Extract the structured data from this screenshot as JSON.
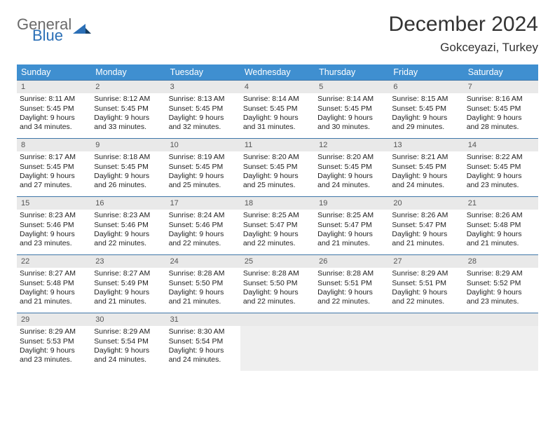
{
  "brand": {
    "general": "General",
    "blue": "Blue"
  },
  "colors": {
    "header_bg": "#3f8fd0",
    "week_border": "#3f76a8",
    "daynum_bg": "#e9e9e9",
    "logo_blue": "#2b6fb6",
    "logo_gray": "#6a6a6a",
    "text": "#222222"
  },
  "title": "December 2024",
  "location": "Gokceyazi, Turkey",
  "weekdays": [
    "Sunday",
    "Monday",
    "Tuesday",
    "Wednesday",
    "Thursday",
    "Friday",
    "Saturday"
  ],
  "days": [
    {
      "n": "1",
      "sr": "8:11 AM",
      "ss": "5:45 PM",
      "dl": "9 hours and 34 minutes."
    },
    {
      "n": "2",
      "sr": "8:12 AM",
      "ss": "5:45 PM",
      "dl": "9 hours and 33 minutes."
    },
    {
      "n": "3",
      "sr": "8:13 AM",
      "ss": "5:45 PM",
      "dl": "9 hours and 32 minutes."
    },
    {
      "n": "4",
      "sr": "8:14 AM",
      "ss": "5:45 PM",
      "dl": "9 hours and 31 minutes."
    },
    {
      "n": "5",
      "sr": "8:14 AM",
      "ss": "5:45 PM",
      "dl": "9 hours and 30 minutes."
    },
    {
      "n": "6",
      "sr": "8:15 AM",
      "ss": "5:45 PM",
      "dl": "9 hours and 29 minutes."
    },
    {
      "n": "7",
      "sr": "8:16 AM",
      "ss": "5:45 PM",
      "dl": "9 hours and 28 minutes."
    },
    {
      "n": "8",
      "sr": "8:17 AM",
      "ss": "5:45 PM",
      "dl": "9 hours and 27 minutes."
    },
    {
      "n": "9",
      "sr": "8:18 AM",
      "ss": "5:45 PM",
      "dl": "9 hours and 26 minutes."
    },
    {
      "n": "10",
      "sr": "8:19 AM",
      "ss": "5:45 PM",
      "dl": "9 hours and 25 minutes."
    },
    {
      "n": "11",
      "sr": "8:20 AM",
      "ss": "5:45 PM",
      "dl": "9 hours and 25 minutes."
    },
    {
      "n": "12",
      "sr": "8:20 AM",
      "ss": "5:45 PM",
      "dl": "9 hours and 24 minutes."
    },
    {
      "n": "13",
      "sr": "8:21 AM",
      "ss": "5:45 PM",
      "dl": "9 hours and 24 minutes."
    },
    {
      "n": "14",
      "sr": "8:22 AM",
      "ss": "5:45 PM",
      "dl": "9 hours and 23 minutes."
    },
    {
      "n": "15",
      "sr": "8:23 AM",
      "ss": "5:46 PM",
      "dl": "9 hours and 23 minutes."
    },
    {
      "n": "16",
      "sr": "8:23 AM",
      "ss": "5:46 PM",
      "dl": "9 hours and 22 minutes."
    },
    {
      "n": "17",
      "sr": "8:24 AM",
      "ss": "5:46 PM",
      "dl": "9 hours and 22 minutes."
    },
    {
      "n": "18",
      "sr": "8:25 AM",
      "ss": "5:47 PM",
      "dl": "9 hours and 22 minutes."
    },
    {
      "n": "19",
      "sr": "8:25 AM",
      "ss": "5:47 PM",
      "dl": "9 hours and 21 minutes."
    },
    {
      "n": "20",
      "sr": "8:26 AM",
      "ss": "5:47 PM",
      "dl": "9 hours and 21 minutes."
    },
    {
      "n": "21",
      "sr": "8:26 AM",
      "ss": "5:48 PM",
      "dl": "9 hours and 21 minutes."
    },
    {
      "n": "22",
      "sr": "8:27 AM",
      "ss": "5:48 PM",
      "dl": "9 hours and 21 minutes."
    },
    {
      "n": "23",
      "sr": "8:27 AM",
      "ss": "5:49 PM",
      "dl": "9 hours and 21 minutes."
    },
    {
      "n": "24",
      "sr": "8:28 AM",
      "ss": "5:50 PM",
      "dl": "9 hours and 21 minutes."
    },
    {
      "n": "25",
      "sr": "8:28 AM",
      "ss": "5:50 PM",
      "dl": "9 hours and 22 minutes."
    },
    {
      "n": "26",
      "sr": "8:28 AM",
      "ss": "5:51 PM",
      "dl": "9 hours and 22 minutes."
    },
    {
      "n": "27",
      "sr": "8:29 AM",
      "ss": "5:51 PM",
      "dl": "9 hours and 22 minutes."
    },
    {
      "n": "28",
      "sr": "8:29 AM",
      "ss": "5:52 PM",
      "dl": "9 hours and 23 minutes."
    },
    {
      "n": "29",
      "sr": "8:29 AM",
      "ss": "5:53 PM",
      "dl": "9 hours and 23 minutes."
    },
    {
      "n": "30",
      "sr": "8:29 AM",
      "ss": "5:54 PM",
      "dl": "9 hours and 24 minutes."
    },
    {
      "n": "31",
      "sr": "8:30 AM",
      "ss": "5:54 PM",
      "dl": "9 hours and 24 minutes."
    }
  ],
  "labels": {
    "sunrise": "Sunrise: ",
    "sunset": "Sunset: ",
    "daylight": "Daylight: "
  },
  "layout": {
    "start_offset": 0,
    "trailing_blanks": 4
  }
}
